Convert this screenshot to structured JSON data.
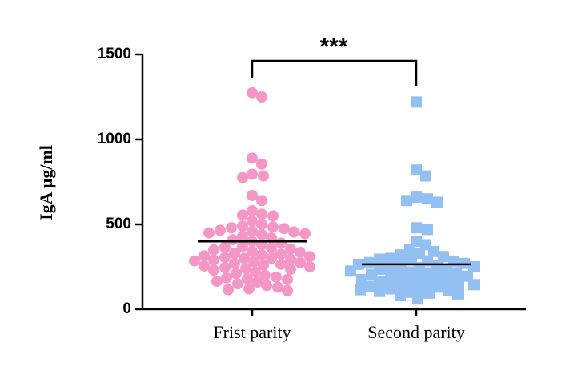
{
  "chart_data": {
    "type": "scatter-dot",
    "y_label": "IgA μg/ml",
    "annotation": "***",
    "categories": [
      "Frist parity",
      "Second parity"
    ],
    "groups": [
      {
        "color": "#f597c6",
        "marker": "circle",
        "mean": 400,
        "values": [
          1275,
          1250,
          890,
          855,
          795,
          785,
          775,
          670,
          640,
          580,
          560,
          555,
          550,
          520,
          500,
          490,
          485,
          480,
          475,
          465,
          460,
          455,
          450,
          445,
          440,
          430,
          420,
          410,
          400,
          390,
          380,
          370,
          365,
          360,
          355,
          350,
          340,
          335,
          330,
          325,
          320,
          315,
          310,
          305,
          300,
          300,
          295,
          290,
          285,
          280,
          275,
          270,
          265,
          260,
          255,
          250,
          245,
          240,
          235,
          230,
          220,
          210,
          200,
          190,
          185,
          180,
          175,
          165,
          160,
          150,
          140,
          130,
          120,
          115,
          110
        ]
      },
      {
        "color": "#93c0f2",
        "marker": "square",
        "mean": 265,
        "values": [
          1220,
          820,
          785,
          660,
          650,
          640,
          630,
          480,
          470,
          400,
          380,
          350,
          340,
          330,
          320,
          310,
          300,
          295,
          290,
          285,
          280,
          275,
          270,
          265,
          260,
          255,
          250,
          245,
          240,
          235,
          230,
          225,
          220,
          215,
          210,
          205,
          200,
          195,
          190,
          185,
          180,
          175,
          170,
          165,
          160,
          155,
          150,
          145,
          140,
          135,
          130,
          125,
          120,
          115,
          110,
          105,
          100,
          95,
          90,
          80,
          60
        ]
      }
    ],
    "ylim": [
      0,
      1500
    ],
    "yticks": [
      0,
      500,
      1000,
      1500
    ]
  }
}
